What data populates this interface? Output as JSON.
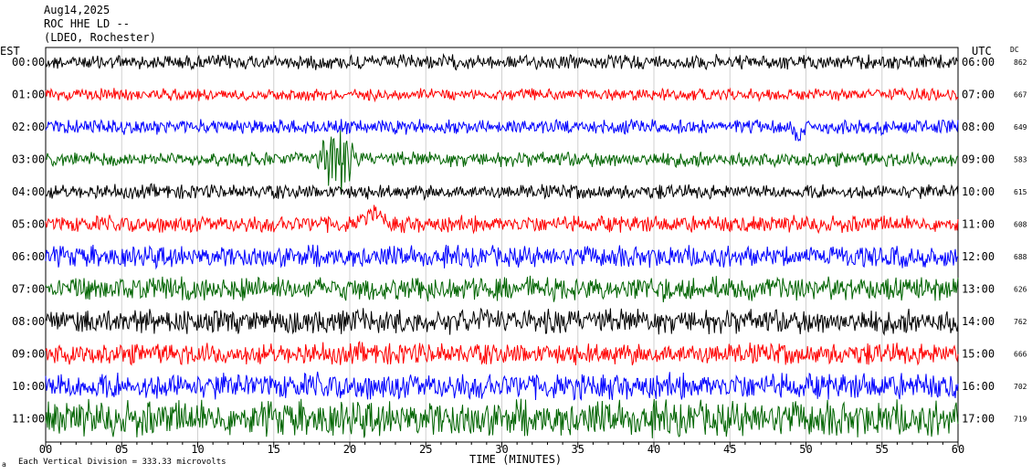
{
  "header": {
    "date": "Aug14,2025",
    "station": "ROC HHE LD --",
    "network": "(LDEO, Rochester)"
  },
  "left_tz": "EST",
  "right_tz": "UTC",
  "dc_label": "DC",
  "footer_note": "Each Vertical Division = 333.33 microvolts",
  "chart_data": {
    "type": "line",
    "title": "ROC HHE LD --",
    "xlabel": "TIME (MINUTES)",
    "xlim": [
      0,
      60
    ],
    "x_ticks": [
      "00",
      "05",
      "10",
      "15",
      "20",
      "25",
      "30",
      "35",
      "40",
      "45",
      "50",
      "55",
      "60"
    ],
    "grid": true,
    "rows": [
      {
        "est": "00:00",
        "utc": "06:00",
        "dc": "862",
        "color": "#000000",
        "amp": 6
      },
      {
        "est": "01:00",
        "utc": "07:00",
        "dc": "667",
        "color": "#ff0000",
        "amp": 5
      },
      {
        "est": "02:00",
        "utc": "08:00",
        "dc": "649",
        "color": "#0000ff",
        "amp": 6
      },
      {
        "est": "03:00",
        "utc": "09:00",
        "dc": "583",
        "color": "#006400",
        "amp": 6
      },
      {
        "est": "04:00",
        "utc": "10:00",
        "dc": "615",
        "color": "#000000",
        "amp": 6
      },
      {
        "est": "05:00",
        "utc": "11:00",
        "dc": "608",
        "color": "#ff0000",
        "amp": 7
      },
      {
        "est": "06:00",
        "utc": "12:00",
        "dc": "688",
        "color": "#0000ff",
        "amp": 9
      },
      {
        "est": "07:00",
        "utc": "13:00",
        "dc": "626",
        "color": "#006400",
        "amp": 10
      },
      {
        "est": "08:00",
        "utc": "14:00",
        "dc": "762",
        "color": "#000000",
        "amp": 10
      },
      {
        "est": "09:00",
        "utc": "15:00",
        "dc": "666",
        "color": "#ff0000",
        "amp": 9
      },
      {
        "est": "10:00",
        "utc": "16:00",
        "dc": "702",
        "color": "#0000ff",
        "amp": 11
      },
      {
        "est": "11:00",
        "utc": "17:00",
        "dc": "719",
        "color": "#006400",
        "amp": 15
      }
    ],
    "events": [
      {
        "row": 3,
        "minute": 19.2,
        "note": "large spike"
      },
      {
        "row": 2,
        "minute": 49.5,
        "note": "dip"
      },
      {
        "row": 5,
        "minute": 21.5,
        "note": "bump"
      }
    ]
  }
}
